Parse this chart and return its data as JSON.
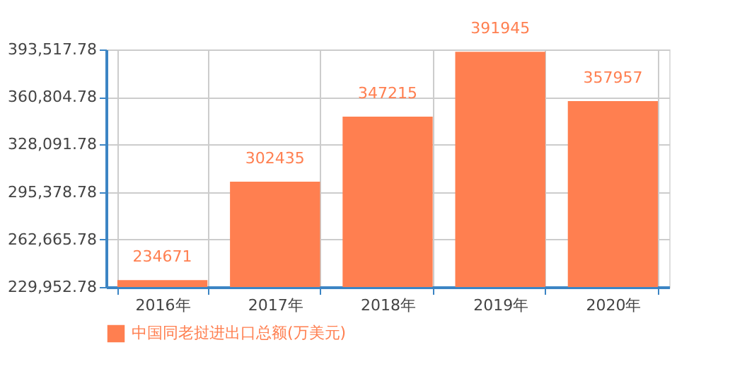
{
  "chart_data": {
    "type": "bar",
    "categories": [
      "2016年",
      "2017年",
      "2018年",
      "2019年",
      "2020年"
    ],
    "series": [
      {
        "name": "中国同老挝进出口总额(万美元)",
        "color": "#ff7f50",
        "values": [
          234671,
          302435,
          347215,
          391945,
          357957
        ]
      }
    ],
    "ylim": [
      229952.78,
      393517.78
    ],
    "yticks": [
      {
        "value": 229952.78,
        "label": "229,952.78"
      },
      {
        "value": 262665.78,
        "label": "262,665.78"
      },
      {
        "value": 295378.78,
        "label": "295,378.78"
      },
      {
        "value": 328091.78,
        "label": "328,091.78"
      },
      {
        "value": 360804.78,
        "label": "360,804.78"
      },
      {
        "value": 393517.78,
        "label": "393,517.78"
      }
    ],
    "data_labels": true,
    "grid": true,
    "legend": "bottom"
  }
}
